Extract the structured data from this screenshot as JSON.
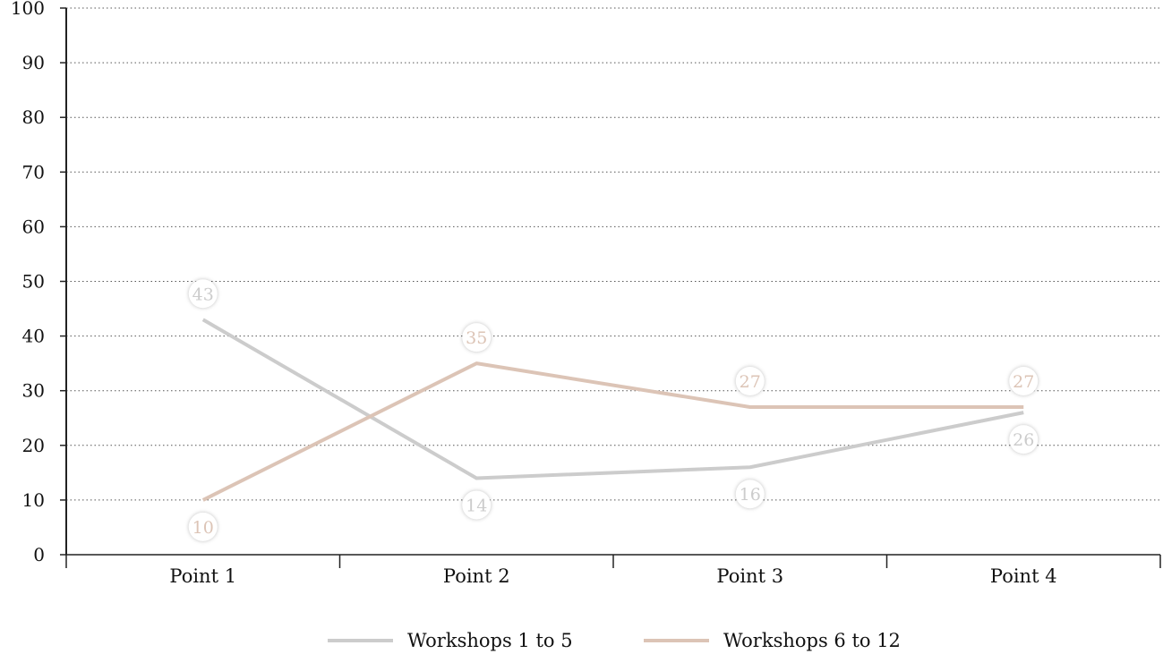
{
  "chart_data": {
    "type": "line",
    "categories": [
      "Point 1",
      "Point 2",
      "Point 3",
      "Point 4"
    ],
    "series": [
      {
        "name": "Workshops 1 to 5",
        "values": [
          43,
          14,
          16,
          26
        ],
        "color": "#cccccc"
      },
      {
        "name": "Workshops 6 to 12",
        "values": [
          10,
          35,
          27,
          27
        ],
        "color": "#dcc4b6"
      }
    ],
    "title": "",
    "xlabel": "",
    "ylabel": "",
    "ylim": [
      0,
      100
    ],
    "yticks": [
      0,
      10,
      20,
      30,
      40,
      50,
      60,
      70,
      80,
      90,
      100
    ],
    "grid": "horizontal dotted",
    "legend": "bottom-center"
  }
}
